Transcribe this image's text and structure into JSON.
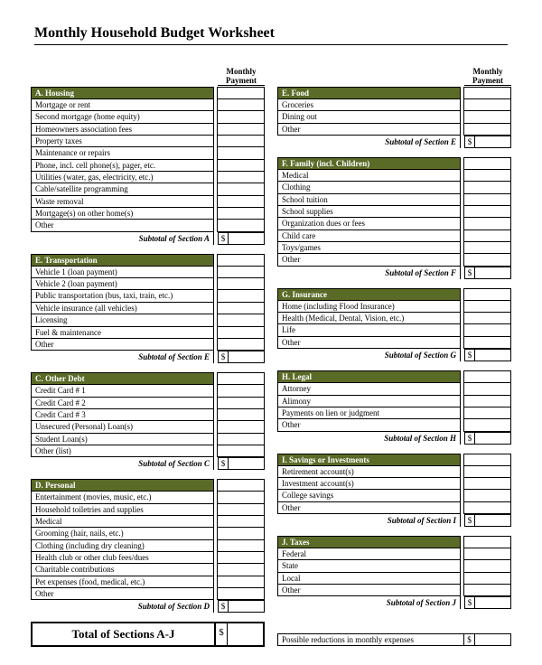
{
  "title": "Monthly Household Budget Worksheet",
  "monthly_payment_header": [
    "Monthly",
    "Payment"
  ],
  "currency": "$",
  "left_sections": [
    {
      "letter": "A",
      "name": "A. Housing",
      "items": [
        "Mortgage or rent",
        "Second mortgage (home equity)",
        "Homeowners association fees",
        "Property taxes",
        "Maintenance or repairs",
        "Phone, incl. cell phone(s), pager, etc.",
        "Utilities (water, gas, electricity, etc.)",
        "Cable/satellite programming",
        "Waste removal",
        "Mortgage(s) on other home(s)",
        "Other"
      ],
      "subtotal": "Subtotal of Section A"
    },
    {
      "letter": "E",
      "name": "E. Transportation",
      "items": [
        "Vehicle 1 (loan payment)",
        "Vehicle 2 (loan payment)",
        "Public transportation (bus, taxi, train, etc.)",
        "Vehicle insurance (all vehicles)",
        "Licensing",
        "Fuel & maintenance",
        "Other"
      ],
      "subtotal": "Subtotal of Section E"
    },
    {
      "letter": "C",
      "name": "C. Other Debt",
      "items": [
        "Credit Card # 1",
        "Credit Card # 2",
        "Credit Card # 3",
        "Unsecured (Personal) Loan(s)",
        "Student Loan(s)",
        "Other (list)"
      ],
      "subtotal": "Subtotal of Section C"
    },
    {
      "letter": "D",
      "name": "D. Personal",
      "items": [
        "Entertainment (movies, music, etc.)",
        "Household toiletries and supplies",
        "Medical",
        "Grooming (hair, nails, etc.)",
        "Clothing (including dry cleaning)",
        "Health club or other club fees/dues",
        "Charitable contributions",
        "Pet expenses (food, medical, etc.)",
        "Other"
      ],
      "subtotal": "Subtotal of Section D"
    }
  ],
  "right_sections": [
    {
      "letter": "E2",
      "name": "E. Food",
      "items": [
        "Groceries",
        "Dining out",
        "Other"
      ],
      "subtotal": "Subtotal of Section E"
    },
    {
      "letter": "F",
      "name": "F. Family (incl. Children)",
      "items": [
        "Medical",
        "Clothing",
        "School tuition",
        "School supplies",
        "Organization dues or fees",
        "Child care",
        "Toys/games",
        "Other"
      ],
      "subtotal": "Subtotal of Section F"
    },
    {
      "letter": "G",
      "name": "G. Insurance",
      "items": [
        "Home (including Flood Insurance)",
        "Health (Medical, Dental, Vision, etc.)",
        "Life",
        "Other"
      ],
      "subtotal": "Subtotal of Section G"
    },
    {
      "letter": "H",
      "name": "H. Legal",
      "items": [
        "Attorney",
        "Alimony",
        "Payments on lien or judgment",
        "Other"
      ],
      "subtotal": "Subtotal of Section H"
    },
    {
      "letter": "I",
      "name": "I. Savings or Investments",
      "items": [
        "Retirement account(s)",
        "Investment account(s)",
        "College savings",
        "Other"
      ],
      "subtotal": "Subtotal of Section I"
    },
    {
      "letter": "J",
      "name": "J. Taxes",
      "items": [
        "Federal",
        "State",
        "Local",
        "Other"
      ],
      "subtotal": "Subtotal of Section J"
    }
  ],
  "total_label": "Total of Sections A-J",
  "reduction_label": "Possible reductions in monthly expenses",
  "colors": {
    "section_header_bg": "#5a6a27",
    "section_header_fg": "#ffffff",
    "border": "#000000",
    "page_bg": "#ffffff"
  },
  "fonts": {
    "title_pt": 16,
    "body_pt": 9,
    "total_pt": 13
  }
}
